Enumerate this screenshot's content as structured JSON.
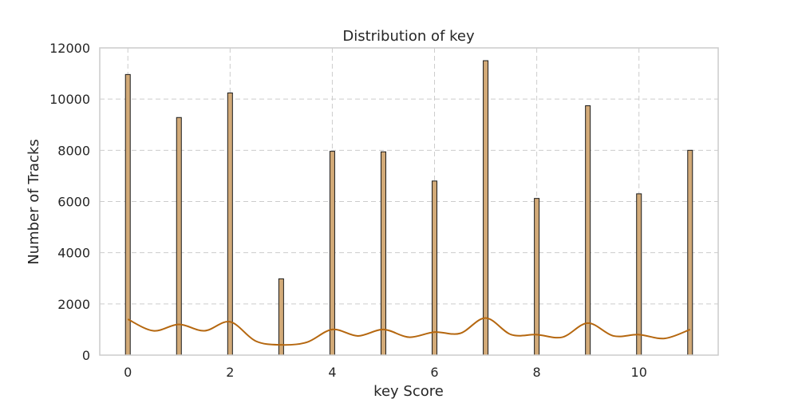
{
  "chart_data": {
    "type": "bar",
    "title": "Distribution of key",
    "xlabel": "key Score",
    "ylabel": "Number of Tracks",
    "x": [
      0,
      1,
      2,
      3,
      4,
      5,
      6,
      7,
      8,
      9,
      10,
      11
    ],
    "values": [
      10960,
      9280,
      10240,
      2980,
      7960,
      7940,
      6800,
      11500,
      6120,
      9740,
      6300,
      8000
    ],
    "xlim": [
      -0.55,
      11.55
    ],
    "ylim": [
      0,
      12000
    ],
    "xticks": [
      0,
      2,
      4,
      6,
      8,
      10
    ],
    "yticks": [
      0,
      2000,
      4000,
      6000,
      8000,
      10000,
      12000
    ],
    "grid": true,
    "kde": {
      "x": [
        0,
        0.5,
        1,
        1.5,
        2,
        2.5,
        3,
        3.5,
        4,
        4.5,
        5,
        5.5,
        6,
        6.5,
        7,
        7.5,
        8,
        8.5,
        9,
        9.5,
        10,
        10.5,
        11
      ],
      "y": [
        1400,
        950,
        1200,
        950,
        1300,
        550,
        400,
        500,
        1000,
        750,
        1000,
        700,
        900,
        850,
        1450,
        800,
        800,
        700,
        1250,
        750,
        800,
        650,
        1000
      ]
    },
    "colors": {
      "bar_fill": "#d2aa78",
      "bar_edge": "#1a1a1a",
      "kde_line": "#b5670f",
      "grid": "#cccccc",
      "frame": "#cccccc"
    }
  }
}
